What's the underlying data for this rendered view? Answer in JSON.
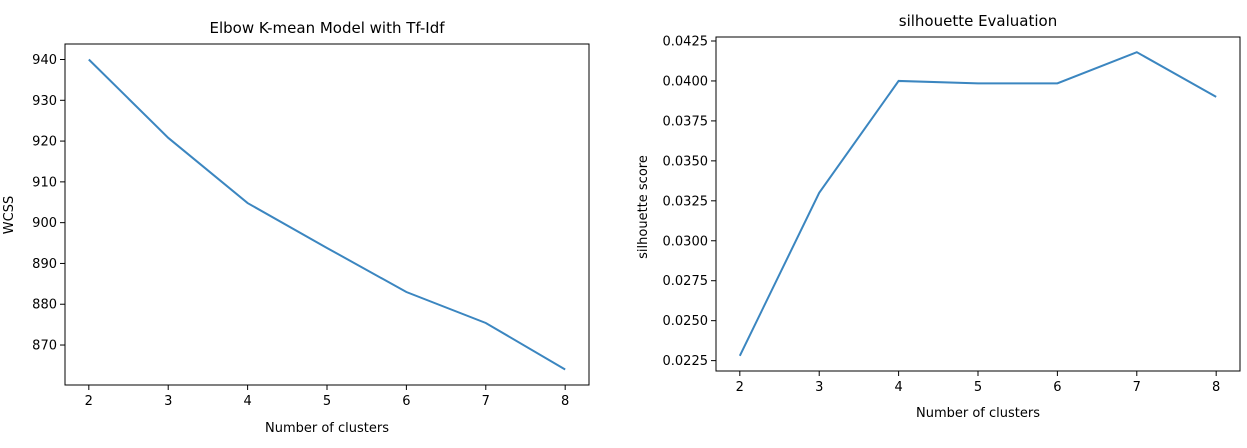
{
  "chart_data": [
    {
      "type": "line",
      "title": "Elbow K-mean Model with Tf-Idf",
      "xlabel": "Number of clusters",
      "ylabel": "WCSS",
      "x": [
        2,
        3,
        4,
        5,
        6,
        7,
        8
      ],
      "xticks": [
        "2",
        "3",
        "4",
        "5",
        "6",
        "7",
        "8"
      ],
      "yticks": [
        "870",
        "880",
        "890",
        "900",
        "910",
        "920",
        "930",
        "940"
      ],
      "series": [
        {
          "values": [
            940.0,
            920.8,
            904.8,
            893.8,
            883.0,
            875.4,
            864.0
          ]
        }
      ],
      "xlim": [
        1.7,
        8.3
      ],
      "ylim": [
        860.2,
        943.8
      ],
      "grid": false,
      "color": "#3b86c0"
    },
    {
      "type": "line",
      "title": "silhouette Evaluation",
      "xlabel": "Number of clusters",
      "ylabel": "silhouette score",
      "x": [
        2,
        3,
        4,
        5,
        6,
        7,
        8
      ],
      "xticks": [
        "2",
        "3",
        "4",
        "5",
        "6",
        "7",
        "8"
      ],
      "yticks": [
        "0.0225",
        "0.0250",
        "0.0275",
        "0.0300",
        "0.0325",
        "0.0350",
        "0.0375",
        "0.0400",
        "0.0425"
      ],
      "series": [
        {
          "values": [
            0.0228,
            0.033,
            0.04,
            0.03985,
            0.03985,
            0.0418,
            0.039
          ]
        }
      ],
      "xlim": [
        1.7,
        8.3
      ],
      "ylim": [
        0.02185,
        0.04275
      ],
      "grid": false,
      "color": "#3b86c0"
    }
  ]
}
